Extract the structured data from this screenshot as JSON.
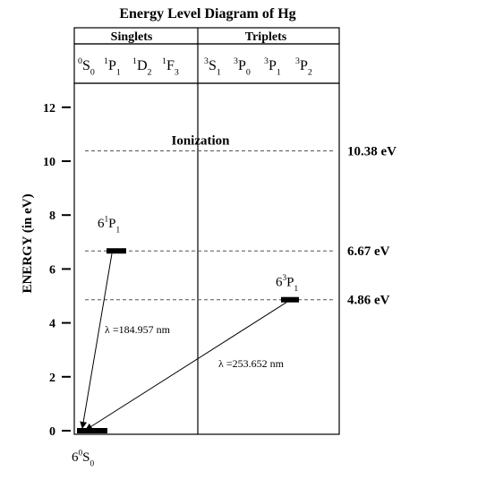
{
  "title": "Energy Level Diagram of Hg",
  "groups": {
    "singlets": "Singlets",
    "triplets": "Triplets"
  },
  "terms": {
    "singlets": [
      {
        "sup": "0",
        "L": "S",
        "sub": "0"
      },
      {
        "sup": "1",
        "L": "P",
        "sub": "1"
      },
      {
        "sup": "1",
        "L": "D",
        "sub": "2"
      },
      {
        "sup": "1",
        "L": "F",
        "sub": "3"
      }
    ],
    "triplets": [
      {
        "sup": "3",
        "L": "S",
        "sub": "1"
      },
      {
        "sup": "3",
        "L": "P",
        "sub": "0"
      },
      {
        "sup": "3",
        "L": "P",
        "sub": "1"
      },
      {
        "sup": "3",
        "L": "P",
        "sub": "2"
      }
    ]
  },
  "axis": {
    "label": "ENERGY (in eV)",
    "ticks": [
      0,
      2,
      4,
      6,
      8,
      10,
      12
    ],
    "range": [
      0,
      12.5
    ]
  },
  "levels": [
    {
      "energy": 10.38,
      "label": "10.38 eV",
      "name": "Ionization"
    },
    {
      "energy": 6.67,
      "label": "6.67 eV",
      "state": {
        "n": "6",
        "sup": "1",
        "L": "P",
        "sub": "1"
      }
    },
    {
      "energy": 4.86,
      "label": "4.86 eV",
      "state": {
        "n": "6",
        "sup": "3",
        "L": "P",
        "sub": "1"
      }
    },
    {
      "energy": 0,
      "state": {
        "n": "6",
        "sup": "0",
        "L": "S",
        "sub": "0"
      }
    }
  ],
  "transitions": [
    {
      "from": 6.67,
      "to": 0,
      "label": "λ =184.957 nm"
    },
    {
      "from": 4.86,
      "to": 0,
      "label": "λ =253.652 nm"
    }
  ]
}
